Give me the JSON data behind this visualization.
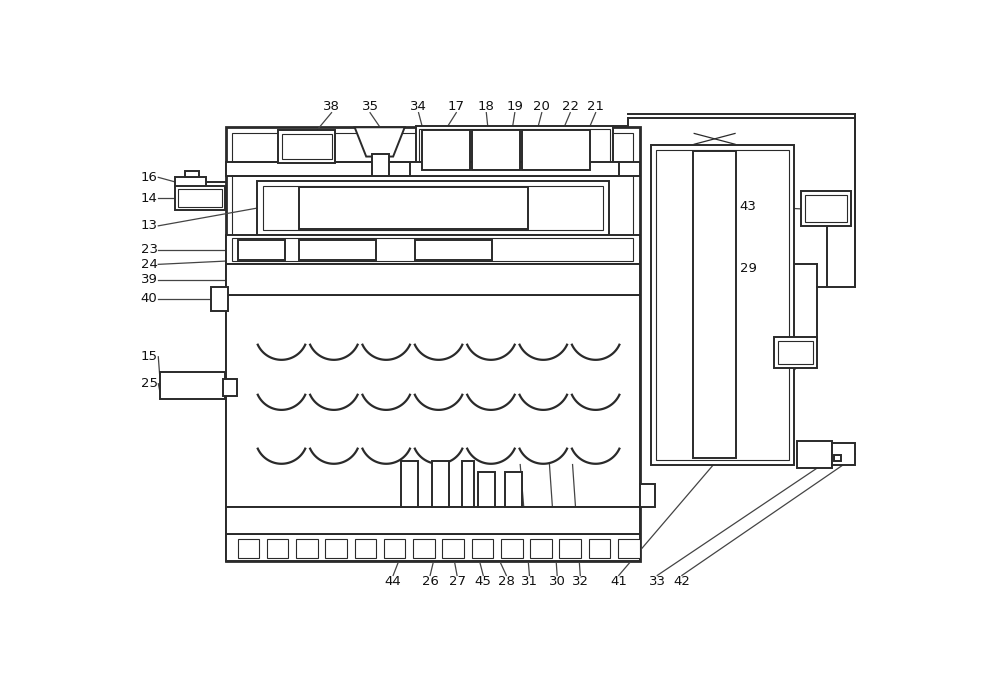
{
  "bg_color": "#ffffff",
  "line_color": "#2a2a2a",
  "lw": 1.4,
  "lw_thick": 2.0,
  "lw_thin": 0.8,
  "fig_w": 10.0,
  "fig_h": 6.95,
  "label_fs": 9.5
}
